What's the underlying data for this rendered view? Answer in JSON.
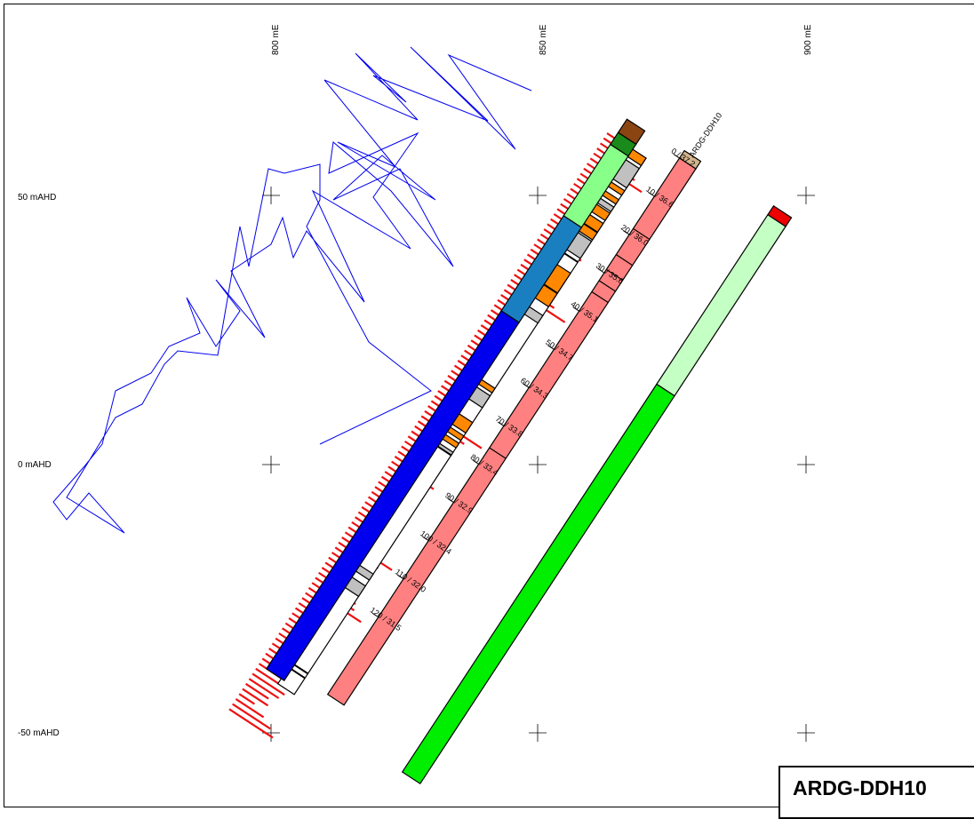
{
  "hole_label": "ARDG-DDH10",
  "title": "ARDG-DDH10",
  "grid": {
    "easting_labels": [
      "800 mE",
      "850 mE",
      "900 mE"
    ],
    "elevation_labels": [
      "50 mAHD",
      "0 mAHD",
      "-50 mAHD"
    ]
  },
  "depth_ticks": [
    "0 / 37.2",
    "10 / 36.6",
    "20 / 36.0",
    "30 / 35.6",
    "40 / 35.1",
    "50 / 34.7",
    "60 / 34.3",
    "70 / 33.8",
    "80 / 33.4",
    "90 / 32.9",
    "100 / 32.4",
    "110 / 32.0",
    "120 / 31.5"
  ],
  "colors": {
    "trace_line": "#0000ee",
    "bars": "#ee1111",
    "pink_track": "#ff8080",
    "blue_dark": "#0000ee",
    "blue_light": "#1a7fc0",
    "light_green": "#88ff88",
    "orange": "#ff8800",
    "grey": "#c0c0c0",
    "brown": "#8b4513",
    "dark_green": "#1a8a1a",
    "tan": "#d2b48c",
    "pale_green": "#c4ffc4",
    "green": "#00ee00",
    "red": "#ee0000"
  }
}
